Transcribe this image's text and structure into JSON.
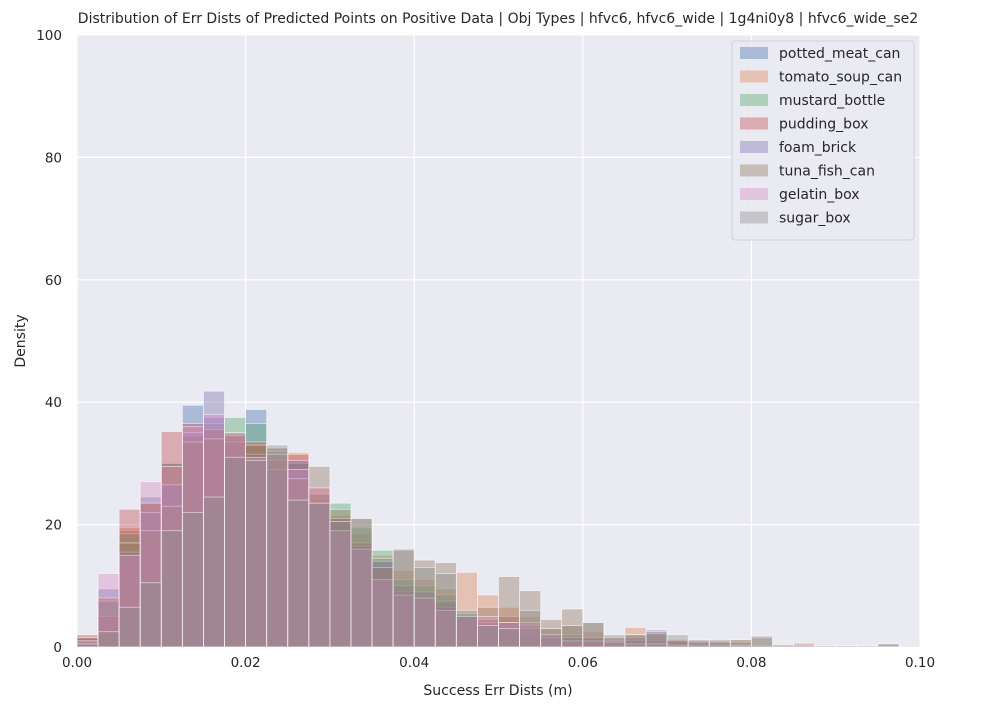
{
  "chart_data": {
    "type": "histogram",
    "title": "Distribution of Err Dists of Predicted Points on Positive Data | Obj Types | hfvc6, hfvc6_wide | 1g4ni0y8 | hfvc6_wide_se2",
    "xlabel": "Success Err Dists (m)",
    "ylabel": "Density",
    "xlim": [
      0,
      0.1
    ],
    "ylim": [
      0,
      100
    ],
    "x_ticks": [
      "0.00",
      "0.02",
      "0.04",
      "0.06",
      "0.08",
      "0.10"
    ],
    "y_ticks": [
      "0",
      "20",
      "40",
      "60",
      "80",
      "100"
    ],
    "bin_width": 0.0025,
    "grid": true,
    "legend_position": "top-right",
    "series": [
      {
        "name": "potted_meat_can",
        "color": "#4c72b0",
        "values": [
          1.5,
          9.5,
          19,
          24.5,
          30,
          39.5,
          37.5,
          34.5,
          38.8,
          32.5,
          30,
          24,
          20,
          17,
          14,
          9,
          8,
          7,
          5,
          3,
          3,
          2,
          1.5,
          1,
          0.8,
          0.5,
          0.5,
          0.5,
          0.4,
          0.3,
          0.3,
          0.2,
          0.2,
          0.1,
          0.1,
          0.1,
          0.1,
          0.1,
          0.1,
          0.1
        ]
      },
      {
        "name": "tomato_soup_can",
        "color": "#dd8452",
        "values": [
          1.5,
          8,
          19.5,
          23.5,
          29.5,
          34.5,
          35.5,
          34,
          33,
          32.5,
          31.8,
          26,
          21.5,
          18.5,
          15,
          12.5,
          11,
          9.5,
          12.2,
          8.5,
          6.5,
          5,
          3,
          3.5,
          2.5,
          1.5,
          3.2,
          2,
          1.3,
          1.2,
          1,
          1.2,
          0.5,
          0.4,
          0.3,
          0.2,
          0.2,
          0.2,
          0.1,
          0.1
        ]
      },
      {
        "name": "mustard_bottle",
        "color": "#55a868",
        "values": [
          1.5,
          7.5,
          18.5,
          23.5,
          30,
          34.5,
          36.5,
          37.5,
          36.5,
          32,
          30,
          25,
          23.5,
          19.5,
          15.8,
          11,
          10,
          8.5,
          5.5,
          4.5,
          4,
          3,
          2,
          2,
          1.5,
          1,
          1,
          0.5,
          0.5,
          0.5,
          0.5,
          0.3,
          0.3,
          0.2,
          0.2,
          0.1,
          0.1,
          0.1,
          0.1,
          0.1
        ]
      },
      {
        "name": "pudding_box",
        "color": "#c44e52",
        "values": [
          2,
          5,
          22.5,
          23.5,
          35.2,
          36.5,
          35.5,
          34.5,
          33.5,
          30.5,
          31.5,
          25,
          21,
          17,
          13,
          9,
          8,
          6.5,
          5,
          4.5,
          5,
          3.5,
          2,
          1.5,
          1.5,
          1,
          1,
          1,
          1.2,
          0.5,
          0.8,
          0.3,
          0.3,
          0.3,
          0.6,
          0.2,
          0.2,
          0.1,
          0.1,
          0.1
        ]
      },
      {
        "name": "foam_brick",
        "color": "#8172b3",
        "values": [
          1,
          7.5,
          15.5,
          22,
          26.5,
          35,
          41.8,
          33.5,
          31.5,
          29,
          30.5,
          23.5,
          21,
          16.5,
          14,
          10,
          9,
          7.5,
          5,
          4,
          4,
          3,
          1.5,
          1.5,
          1.5,
          1,
          1.5,
          2.8,
          1,
          1.2,
          0.5,
          0.3,
          0.3,
          0.2,
          0.2,
          0.2,
          0.1,
          0.1,
          0.1,
          0.1
        ]
      },
      {
        "name": "tuna_fish_can",
        "color": "#937860",
        "values": [
          1.5,
          8,
          17,
          19,
          23,
          33.5,
          34,
          35,
          33,
          31.5,
          27.5,
          29.5,
          22.5,
          21,
          13,
          15.8,
          14.2,
          13.8,
          5,
          6.5,
          11.5,
          9.2,
          4.5,
          6.2,
          4,
          1.5,
          2,
          2.2,
          1,
          0.8,
          0.8,
          0.8,
          1.5,
          0.4,
          0.3,
          0.2,
          0.2,
          0.2,
          0.5,
          0.1
        ]
      },
      {
        "name": "gelatin_box",
        "color": "#da8bc3",
        "values": [
          1,
          12,
          15,
          27,
          29.5,
          36,
          38,
          35,
          31,
          31.5,
          29,
          26,
          19,
          16,
          11,
          8.5,
          8,
          6,
          5,
          5,
          4,
          4,
          2,
          1,
          1,
          0.8,
          0.5,
          0.5,
          0.3,
          0.3,
          0.3,
          0.2,
          0.2,
          0.1,
          0.1,
          0.1,
          0.1,
          0.1,
          0.1,
          0.1
        ]
      },
      {
        "name": "sugar_box",
        "color": "#8c8c8c",
        "values": [
          0.5,
          2.5,
          6.5,
          10.5,
          19,
          22,
          24.5,
          31,
          30.5,
          33,
          24,
          23.5,
          20.5,
          21,
          14.5,
          16,
          13,
          12,
          6,
          3.5,
          3,
          6,
          3,
          3.5,
          4,
          2,
          2,
          2.5,
          2,
          1,
          1.2,
          1.2,
          1.8,
          0.3,
          0.3,
          0.2,
          0.2,
          0.2,
          0.5,
          0.1
        ]
      }
    ]
  }
}
